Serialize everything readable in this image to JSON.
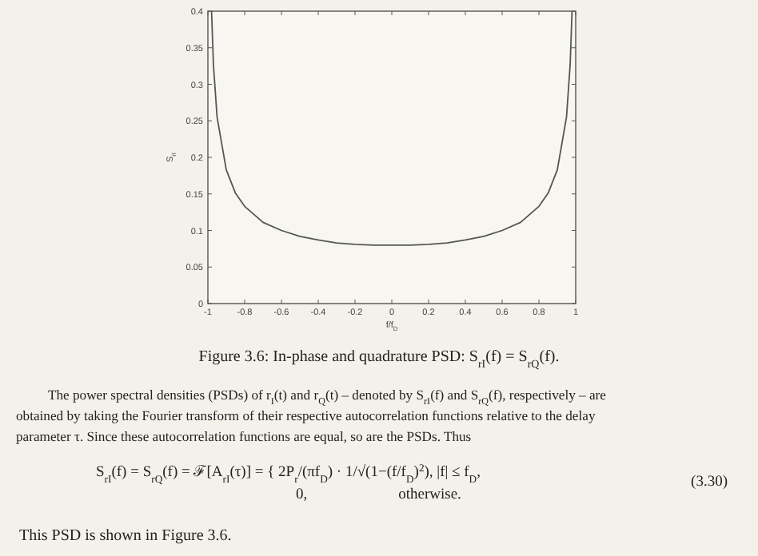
{
  "chart_data": {
    "type": "line",
    "xlabel": "f/f$_{D}$",
    "ylabel": "S$_{rI}$",
    "x": [
      -0.98,
      -0.97,
      -0.95,
      -0.9,
      -0.85,
      -0.8,
      -0.7,
      -0.6,
      -0.5,
      -0.4,
      -0.3,
      -0.2,
      -0.1,
      0,
      0.1,
      0.2,
      0.3,
      0.4,
      0.5,
      0.6,
      0.7,
      0.8,
      0.85,
      0.9,
      0.95,
      0.97,
      0.98
    ],
    "series": [
      {
        "color": "#555555",
        "values": [
          0.4,
          0.327,
          0.255,
          0.183,
          0.151,
          0.133,
          0.111,
          0.1,
          0.092,
          0.087,
          0.083,
          0.081,
          0.08,
          0.08,
          0.08,
          0.081,
          0.083,
          0.087,
          0.092,
          0.1,
          0.111,
          0.133,
          0.151,
          0.183,
          0.255,
          0.327,
          0.4
        ]
      }
    ],
    "xlim": [
      -1,
      1
    ],
    "xticks": [
      -1,
      -0.8,
      -0.6,
      -0.4,
      -0.2,
      0,
      0.2,
      0.4,
      0.6,
      0.8,
      1
    ],
    "ylim": [
      0,
      0.4
    ],
    "yticks": [
      0,
      0.05,
      0.1,
      0.15,
      0.2,
      0.25,
      0.3,
      0.35,
      0.4
    ],
    "grid": false,
    "marker": "none",
    "line_style": "solid",
    "annotations": [
      "Figure 3.6: In-phase and quadrature PSD: S$_{rI}$(f) = S$_{rQ}$(f).",
      "The power spectral densities (PSDs) of r$_{I}$(t) and r$_{Q}$(t) – denoted by S$_{rI}$(f) and S$_{rQ}$(f), respectively – are obtained by taking the Fourier transform of their respective autocorrelation functions relative to the delay parameter τ. Since these autocorrelation functions are equal, so are the PSDs. Thus",
      "S$_{rI}$(f) = S$_{rQ}$(f) = ℱ[A$_{rI}$(τ)] = { 2P$_{r}$/(πf$_{D}$) · 1/√(1−(f/f$_{D}$)$^{2}$),   |f| ≤ f$_{D}$,",
      "0,                        otherwise.",
      "(3.30)",
      "This PSD is shown in Figure 3.6."
    ]
  }
}
